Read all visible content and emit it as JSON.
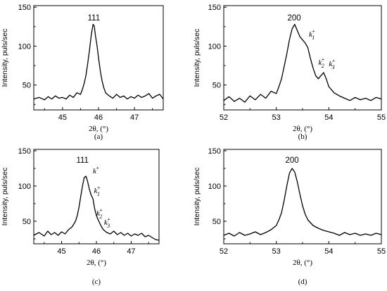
{
  "chart_data": [
    {
      "type": "line",
      "panel_label": "(a)",
      "ylabel": "Intensity, puls/sec",
      "xlabel": "2θ, (°)",
      "xlim": [
        44.2,
        47.8
      ],
      "ylim": [
        18,
        152
      ],
      "xticks": [
        45,
        46,
        47
      ],
      "yticks": [
        50,
        100,
        150
      ],
      "annotations": [
        {
          "text": "111",
          "x": 45.87,
          "y": 133
        }
      ],
      "k_marks": [],
      "x": [
        44.2,
        44.35,
        44.5,
        44.6,
        44.7,
        44.8,
        44.9,
        45.0,
        45.1,
        45.2,
        45.3,
        45.4,
        45.5,
        45.55,
        45.6,
        45.65,
        45.7,
        45.75,
        45.8,
        45.85,
        45.88,
        45.92,
        45.96,
        46.0,
        46.05,
        46.1,
        46.15,
        46.2,
        46.3,
        46.4,
        46.5,
        46.6,
        46.7,
        46.8,
        46.9,
        47.0,
        47.1,
        47.2,
        47.3,
        47.4,
        47.5,
        47.6,
        47.7,
        47.8
      ],
      "y": [
        32,
        34,
        31,
        35,
        32,
        36,
        33,
        34,
        32,
        37,
        34,
        40,
        38,
        44,
        52,
        62,
        78,
        95,
        115,
        128,
        126,
        112,
        100,
        85,
        68,
        55,
        46,
        40,
        36,
        33,
        38,
        34,
        36,
        32,
        35,
        33,
        37,
        34,
        36,
        39,
        33,
        36,
        38,
        32
      ]
    },
    {
      "type": "line",
      "panel_label": "(b)",
      "ylabel": "Intensity, puls/sec",
      "xlabel": "2θ, (°)",
      "xlim": [
        52,
        55
      ],
      "ylim": [
        18,
        152
      ],
      "xticks": [
        52,
        53,
        54,
        55
      ],
      "yticks": [
        50,
        100,
        150
      ],
      "annotations": [
        {
          "text": "200",
          "x": 53.34,
          "y": 133
        }
      ],
      "k_marks": [
        {
          "text": "k",
          "sup": "+",
          "sub": "1",
          "x": 53.62,
          "y": 112
        },
        {
          "text": "k",
          "sup": "+",
          "sub": "2",
          "x": 53.8,
          "y": 76
        },
        {
          "text": "k",
          "sup": "+",
          "sub": "3",
          "x": 54.0,
          "y": 74
        }
      ],
      "x": [
        52.0,
        52.1,
        52.2,
        52.3,
        52.4,
        52.5,
        52.6,
        52.7,
        52.8,
        52.9,
        53.0,
        53.05,
        53.1,
        53.15,
        53.2,
        53.25,
        53.3,
        53.35,
        53.4,
        53.45,
        53.5,
        53.55,
        53.6,
        53.65,
        53.7,
        53.75,
        53.8,
        53.85,
        53.9,
        53.95,
        54.0,
        54.1,
        54.2,
        54.3,
        54.4,
        54.5,
        54.6,
        54.7,
        54.8,
        54.9,
        55.0
      ],
      "y": [
        30,
        35,
        29,
        33,
        28,
        36,
        31,
        38,
        33,
        42,
        39,
        48,
        58,
        74,
        90,
        108,
        122,
        128,
        120,
        112,
        108,
        104,
        98,
        84,
        72,
        62,
        58,
        62,
        66,
        58,
        48,
        40,
        36,
        33,
        30,
        34,
        31,
        33,
        30,
        34,
        32
      ]
    },
    {
      "type": "line",
      "panel_label": "(c)",
      "ylabel": "Intensity, puls/sec",
      "xlabel": "2θ, (°)",
      "xlim": [
        44.2,
        47.8
      ],
      "ylim": [
        18,
        152
      ],
      "xticks": [
        45,
        46,
        47
      ],
      "yticks": [
        50,
        100,
        150
      ],
      "annotations": [
        {
          "text": "111",
          "x": 45.6,
          "y": 133
        }
      ],
      "k_marks": [
        {
          "text": "k",
          "sup": "+",
          "sub": "",
          "x": 45.9,
          "y": 118
        },
        {
          "text": "k",
          "sup": "+",
          "sub": "1",
          "x": 45.93,
          "y": 90
        },
        {
          "text": "k",
          "sup": "+",
          "sub": "2",
          "x": 46.0,
          "y": 58
        },
        {
          "text": "k",
          "sup": "+",
          "sub": "3",
          "x": 46.22,
          "y": 45
        }
      ],
      "x": [
        44.2,
        44.35,
        44.5,
        44.6,
        44.7,
        44.8,
        44.9,
        45.0,
        45.1,
        45.2,
        45.3,
        45.4,
        45.45,
        45.5,
        45.55,
        45.6,
        45.65,
        45.7,
        45.75,
        45.8,
        45.85,
        45.9,
        45.95,
        46.0,
        46.05,
        46.1,
        46.15,
        46.2,
        46.3,
        46.4,
        46.5,
        46.6,
        46.7,
        46.8,
        46.9,
        47.0,
        47.1,
        47.2,
        47.3,
        47.4,
        47.5,
        47.6,
        47.7,
        47.8
      ],
      "y": [
        30,
        34,
        29,
        36,
        31,
        34,
        30,
        35,
        32,
        38,
        42,
        50,
        58,
        70,
        85,
        100,
        112,
        114,
        106,
        95,
        87,
        82,
        68,
        58,
        52,
        47,
        42,
        38,
        34,
        32,
        36,
        31,
        34,
        30,
        33,
        29,
        32,
        30,
        33,
        28,
        30,
        27,
        24,
        23
      ]
    },
    {
      "type": "line",
      "panel_label": "(d)",
      "ylabel": "Intensity, puls/sec",
      "xlabel": "2θ, (°)",
      "xlim": [
        52,
        55
      ],
      "ylim": [
        18,
        152
      ],
      "xticks": [
        52,
        53,
        54,
        55
      ],
      "yticks": [
        50,
        100,
        150
      ],
      "annotations": [
        {
          "text": "200",
          "x": 53.3,
          "y": 133
        }
      ],
      "k_marks": [],
      "x": [
        52.0,
        52.1,
        52.2,
        52.3,
        52.4,
        52.5,
        52.6,
        52.7,
        52.8,
        52.9,
        53.0,
        53.05,
        53.1,
        53.15,
        53.2,
        53.25,
        53.3,
        53.35,
        53.4,
        53.45,
        53.5,
        53.55,
        53.6,
        53.7,
        53.8,
        53.9,
        54.0,
        54.1,
        54.2,
        54.3,
        54.4,
        54.5,
        54.6,
        54.7,
        54.8,
        54.9,
        55.0
      ],
      "y": [
        30,
        33,
        29,
        34,
        30,
        32,
        35,
        31,
        34,
        38,
        44,
        52,
        62,
        80,
        100,
        118,
        125,
        120,
        106,
        88,
        72,
        60,
        52,
        44,
        40,
        37,
        35,
        33,
        30,
        34,
        31,
        33,
        30,
        32,
        30,
        33,
        31
      ]
    }
  ]
}
